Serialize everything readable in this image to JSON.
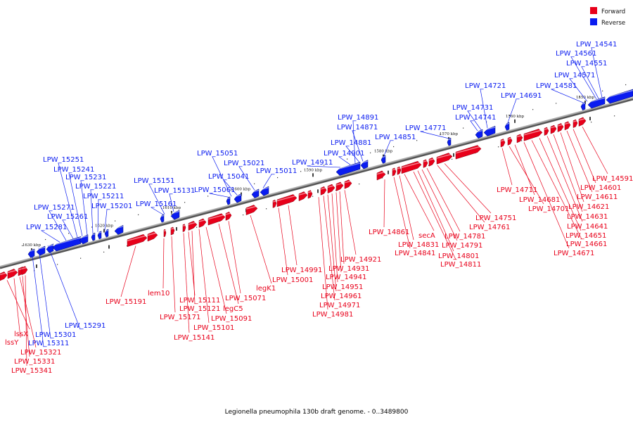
{
  "title": "Legionella pneumophila 130b draft genome. - 0..3489800",
  "legend": [
    {
      "label": "Forward",
      "color": "#e8001a"
    },
    {
      "label": "Reverse",
      "color": "#0a1cf0"
    }
  ],
  "colors": {
    "forward": "#e8001a",
    "reverse": "#0a1cf0",
    "backbone": "#909090"
  },
  "tick_labels": [
    "1630 kbp",
    "1620 kbp",
    "1610 kbp",
    "1600 kbp",
    "1590 kbp",
    "1580 kbp",
    "1570 kbp",
    "1560 kbp",
    "1550 kbp"
  ],
  "reverse_genes": [
    "LPW_15291",
    "LPW_15301",
    "LPW_15311",
    "LPW_15281",
    "LPW_15271",
    "LPW_15261",
    "LPW_15251",
    "LPW_15241",
    "LPW_15231",
    "LPW_15221",
    "LPW_15211",
    "LPW_15201",
    "LPW_15161",
    "LPW_15151",
    "LPW_15131",
    "LPW_15061",
    "LPW_15051",
    "LPW_15041",
    "LPW_15021",
    "LPW_15011",
    "LPW_14911",
    "LPW_14901",
    "LPW_14891",
    "LPW_14881",
    "LPW_14871",
    "LPW_14851",
    "LPW_14771",
    "LPW_14741",
    "LPW_14731",
    "LPW_14721",
    "LPW_14691",
    "LPW_14581",
    "LPW_14571",
    "LPW_14561",
    "LPW_14551",
    "LPW_14541"
  ],
  "forward_genes": [
    "lssX",
    "lssY",
    "LPW_15321",
    "LPW_15331",
    "LPW_15341",
    "LPW_15191",
    "lem10",
    "LPW_15171",
    "LPW_15141",
    "LPW_15111",
    "LPW_15121",
    "LPW_15101",
    "LPW_15091",
    "legC5",
    "LPW_15071",
    "legK1",
    "LPW_15001",
    "LPW_14991",
    "LPW_14981",
    "LPW_14971",
    "LPW_14961",
    "LPW_14951",
    "LPW_14941",
    "LPW_14931",
    "LPW_14921",
    "LPW_14861",
    "LPW_14841",
    "LPW_14831",
    "secA",
    "LPW_14811",
    "LPW_14801",
    "LPW_14791",
    "LPW_14781",
    "LPW_14761",
    "LPW_14751",
    "LPW_14711",
    "LPW_14701",
    "LPW_14681",
    "LPW_14671",
    "LPW_14661",
    "LPW_14651",
    "LPW_14641",
    "LPW_14631",
    "LPW_14621",
    "LPW_14611",
    "LPW_14601",
    "LPW_14591"
  ]
}
